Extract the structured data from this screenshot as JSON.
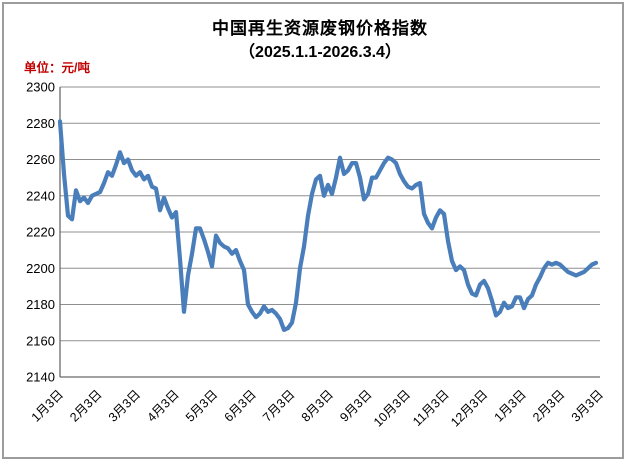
{
  "header": {
    "title": "中国再生资源废钢价格指数",
    "subtitle": "（2025.1.1-2026.3.4）",
    "unit_label": "单位：元/吨"
  },
  "colors": {
    "line": "#4A7EBB",
    "grid": "#8F8F8F",
    "axis": "#6B6B6B",
    "unit_label": "#C00000",
    "text": "#000000",
    "frame": "#9C9C9C"
  },
  "chart_data": {
    "type": "line",
    "title": "中国再生资源废钢价格指数",
    "subtitle": "（2025.1.1-2026.3.4）",
    "ylabel": "元/吨",
    "ylim": [
      2140,
      2300
    ],
    "y_ticks": [
      2300,
      2280,
      2260,
      2240,
      2220,
      2200,
      2180,
      2160,
      2140
    ],
    "x_tick_labels": [
      "1月3日",
      "2月3日",
      "3月3日",
      "4月3日",
      "5月3日",
      "6月3日",
      "7月3日",
      "8月3日",
      "9月3日",
      "10月3日",
      "11月3日",
      "12月3日",
      "1月3日",
      "2月3日",
      "3月3日"
    ],
    "grid": "horizontal-only",
    "legend": "none",
    "series": [
      {
        "values": [
          2281,
          2252,
          2229,
          2227,
          2243,
          2237,
          2239,
          2236,
          2240,
          2241,
          2242,
          2247,
          2253,
          2251,
          2257,
          2264,
          2258,
          2260,
          2254,
          2251,
          2253,
          2249,
          2251,
          2245,
          2244,
          2232,
          2239,
          2233,
          2228,
          2231,
          2205,
          2176,
          2196,
          2208,
          2222,
          2222,
          2216,
          2209,
          2201,
          2218,
          2214,
          2212,
          2211,
          2208,
          2210,
          2204,
          2199,
          2180,
          2176,
          2173,
          2175,
          2179,
          2176,
          2177,
          2175,
          2172,
          2166,
          2167,
          2170,
          2181,
          2200,
          2212,
          2229,
          2241,
          2249,
          2251,
          2240,
          2246,
          2241,
          2250,
          2261,
          2252,
          2254,
          2258,
          2258,
          2250,
          2238,
          2241,
          2250,
          2250,
          2254,
          2258,
          2261,
          2260,
          2258,
          2252,
          2248,
          2245,
          2244,
          2246,
          2247,
          2230,
          2225,
          2222,
          2228,
          2232,
          2230,
          2215,
          2204,
          2199,
          2201,
          2199,
          2191,
          2186,
          2185,
          2191,
          2193,
          2189,
          2182,
          2174,
          2176,
          2181,
          2178,
          2179,
          2184,
          2184,
          2178,
          2183,
          2185,
          2191,
          2195,
          2200,
          2203,
          2202,
          2203,
          2202,
          2200,
          2198,
          2197,
          2196,
          2197,
          2198,
          2200,
          2202,
          2203
        ]
      }
    ]
  }
}
